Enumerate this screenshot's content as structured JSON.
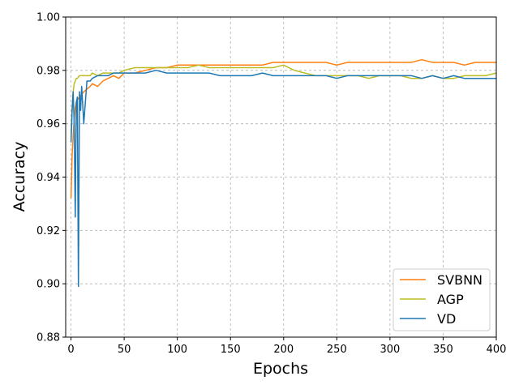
{
  "chart_data": {
    "type": "line",
    "title": "",
    "xlabel": "Epochs",
    "ylabel": "Accuracy",
    "xlim": [
      -5,
      400
    ],
    "ylim": [
      0.88,
      1.0
    ],
    "xticks": [
      0,
      50,
      100,
      150,
      200,
      250,
      300,
      350,
      400
    ],
    "yticks": [
      0.88,
      0.9,
      0.92,
      0.94,
      0.96,
      0.98,
      1.0
    ],
    "ytick_labels": [
      "0.88",
      "0.90",
      "0.92",
      "0.94",
      "0.96",
      "0.98",
      "1.00"
    ],
    "grid": true,
    "grid_style": "dashed",
    "legend_position": "lower-right",
    "series": [
      {
        "name": "SVBNN",
        "color": "#ff7f0e",
        "x": [
          0,
          1,
          2,
          3,
          4,
          5,
          6,
          8,
          10,
          12,
          15,
          18,
          20,
          25,
          30,
          35,
          40,
          45,
          50,
          60,
          70,
          80,
          90,
          100,
          110,
          120,
          130,
          140,
          150,
          160,
          170,
          180,
          190,
          200,
          210,
          220,
          230,
          240,
          250,
          260,
          270,
          280,
          290,
          300,
          310,
          320,
          330,
          340,
          350,
          360,
          370,
          380,
          390,
          400
        ],
        "y": [
          0.932,
          0.948,
          0.955,
          0.962,
          0.966,
          0.968,
          0.969,
          0.97,
          0.971,
          0.972,
          0.973,
          0.974,
          0.975,
          0.974,
          0.976,
          0.977,
          0.978,
          0.977,
          0.979,
          0.979,
          0.98,
          0.981,
          0.981,
          0.982,
          0.982,
          0.982,
          0.982,
          0.982,
          0.982,
          0.982,
          0.982,
          0.982,
          0.983,
          0.983,
          0.983,
          0.983,
          0.983,
          0.983,
          0.982,
          0.983,
          0.983,
          0.983,
          0.983,
          0.983,
          0.983,
          0.983,
          0.984,
          0.983,
          0.983,
          0.983,
          0.982,
          0.983,
          0.983,
          0.983
        ]
      },
      {
        "name": "AGP",
        "color": "#bcbd22",
        "x": [
          0,
          1,
          2,
          3,
          4,
          5,
          6,
          8,
          10,
          12,
          15,
          18,
          20,
          25,
          30,
          35,
          40,
          45,
          50,
          60,
          70,
          80,
          90,
          100,
          110,
          120,
          130,
          140,
          150,
          160,
          170,
          180,
          190,
          200,
          210,
          220,
          230,
          240,
          250,
          260,
          270,
          280,
          290,
          300,
          310,
          320,
          330,
          340,
          350,
          360,
          370,
          380,
          390,
          400
        ],
        "y": [
          0.955,
          0.965,
          0.972,
          0.975,
          0.976,
          0.977,
          0.977,
          0.978,
          0.978,
          0.978,
          0.978,
          0.978,
          0.979,
          0.978,
          0.979,
          0.979,
          0.979,
          0.979,
          0.98,
          0.981,
          0.981,
          0.981,
          0.981,
          0.981,
          0.981,
          0.982,
          0.981,
          0.981,
          0.981,
          0.981,
          0.981,
          0.981,
          0.981,
          0.982,
          0.98,
          0.979,
          0.978,
          0.978,
          0.978,
          0.978,
          0.978,
          0.977,
          0.978,
          0.978,
          0.978,
          0.977,
          0.977,
          0.978,
          0.977,
          0.977,
          0.978,
          0.978,
          0.978,
          0.979
        ]
      },
      {
        "name": "VD",
        "color": "#1f77b4",
        "x": [
          0,
          1,
          2,
          3,
          4,
          5,
          6,
          7,
          8,
          9,
          10,
          12,
          15,
          18,
          20,
          25,
          30,
          35,
          40,
          45,
          50,
          60,
          70,
          80,
          90,
          100,
          110,
          120,
          130,
          140,
          150,
          160,
          170,
          180,
          190,
          200,
          210,
          220,
          230,
          240,
          250,
          260,
          270,
          280,
          290,
          300,
          310,
          320,
          330,
          340,
          350,
          360,
          370,
          380,
          390,
          400
        ],
        "y": [
          0.953,
          0.965,
          0.972,
          0.96,
          0.925,
          0.968,
          0.97,
          0.899,
          0.972,
          0.965,
          0.974,
          0.96,
          0.976,
          0.976,
          0.977,
          0.978,
          0.978,
          0.978,
          0.979,
          0.979,
          0.979,
          0.979,
          0.979,
          0.98,
          0.979,
          0.979,
          0.979,
          0.979,
          0.979,
          0.978,
          0.978,
          0.978,
          0.978,
          0.979,
          0.978,
          0.978,
          0.978,
          0.978,
          0.978,
          0.978,
          0.977,
          0.978,
          0.978,
          0.978,
          0.978,
          0.978,
          0.978,
          0.978,
          0.977,
          0.978,
          0.977,
          0.978,
          0.977,
          0.977,
          0.977,
          0.977
        ]
      }
    ]
  }
}
